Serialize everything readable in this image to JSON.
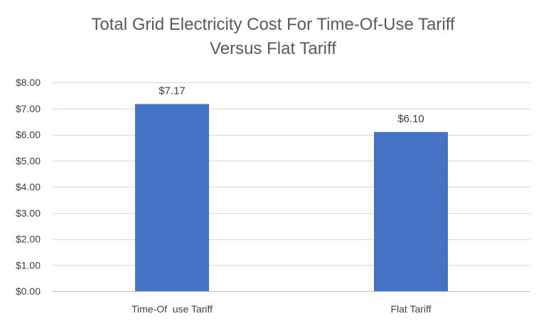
{
  "chart_data": {
    "type": "bar",
    "title_line1": "Total Grid Electricity Cost For Time-Of-Use Tariff",
    "title_line2": "Versus Flat Tariff",
    "categories": [
      "Time-Of  use Tariff",
      "Flat Tariff"
    ],
    "values": [
      7.17,
      6.1
    ],
    "data_labels": [
      "$7.17",
      "$6.10"
    ],
    "ytick_labels": [
      "$0.00",
      "$1.00",
      "$2.00",
      "$3.00",
      "$4.00",
      "$5.00",
      "$6.00",
      "$7.00",
      "$8.00"
    ],
    "yticks": [
      0,
      1,
      2,
      3,
      4,
      5,
      6,
      7,
      8
    ],
    "ylim": [
      0,
      8
    ],
    "grid": true,
    "legend": "none",
    "colors": {
      "bar": "#4472C4",
      "grid": "#D9D9D9",
      "axis": "#BFBFBF"
    }
  }
}
